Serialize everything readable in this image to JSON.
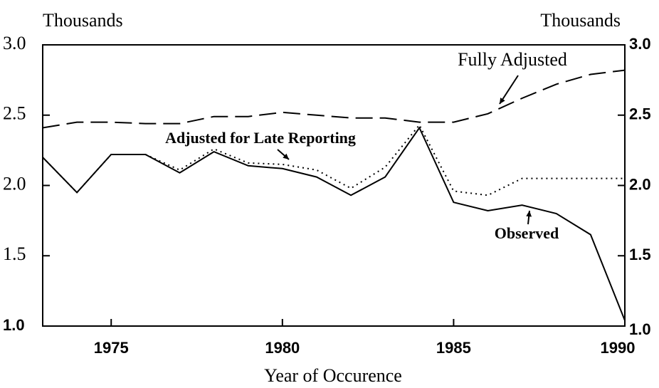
{
  "chart_data": {
    "type": "line",
    "ylabel": "Thousands",
    "y2label": "Thousands",
    "xlabel": "Year of Occurence",
    "x": [
      1973,
      1974,
      1975,
      1976,
      1977,
      1978,
      1979,
      1980,
      1981,
      1982,
      1983,
      1984,
      1985,
      1986,
      1987,
      1988,
      1989,
      1990
    ],
    "series": [
      {
        "name": "Observed",
        "color": "#000000",
        "dash": "solid",
        "values": [
          2.2,
          1.95,
          2.22,
          2.22,
          2.09,
          2.24,
          2.14,
          2.12,
          2.06,
          1.93,
          2.06,
          2.41,
          1.88,
          1.82,
          1.86,
          1.8,
          1.65,
          1.04
        ]
      },
      {
        "name": "Adjusted for Late Reporting",
        "color": "#000000",
        "dash": "dotted",
        "values": [
          2.2,
          1.95,
          2.22,
          2.22,
          2.11,
          2.26,
          2.16,
          2.15,
          2.11,
          1.98,
          2.13,
          2.43,
          1.96,
          1.93,
          2.05,
          2.05,
          2.05,
          2.05
        ]
      },
      {
        "name": "Fully Adjusted",
        "color": "#000000",
        "dash": "dashed",
        "values": [
          2.41,
          2.45,
          2.45,
          2.44,
          2.44,
          2.49,
          2.49,
          2.52,
          2.5,
          2.48,
          2.48,
          2.45,
          2.45,
          2.51,
          2.62,
          2.72,
          2.79,
          2.82
        ]
      }
    ],
    "xlim": [
      1973,
      1990
    ],
    "xticks": [
      1975,
      1980,
      1985,
      1990
    ],
    "ylim": [
      1.0,
      3.0
    ],
    "yticks": [
      {
        "value": 1,
        "label": "1.0"
      },
      {
        "value": 1.5,
        "label": "1.5"
      },
      {
        "value": 2,
        "label": "2.0"
      },
      {
        "value": 2.5,
        "label": "2.5"
      },
      {
        "value": 3,
        "label": "3.0"
      }
    ],
    "y2lim": [
      1.0,
      3.0
    ],
    "y2ticks": [
      {
        "value": 1,
        "label": "1.0"
      },
      {
        "value": 1.5,
        "label": "1.5"
      },
      {
        "value": 2,
        "label": "2.0"
      },
      {
        "value": 2.5,
        "label": "2.5"
      },
      {
        "value": 3,
        "label": "3.0"
      }
    ],
    "legend": "annotations"
  }
}
